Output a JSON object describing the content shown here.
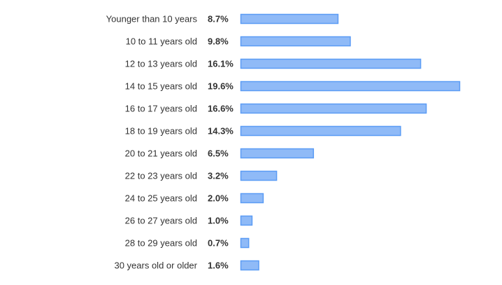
{
  "colors": {
    "bar_fill": "#8fbaf7",
    "bar_stroke": "#5b9cf5",
    "text": "#333333",
    "background": "#ffffff"
  },
  "chart_data": {
    "type": "bar",
    "orientation": "horizontal",
    "categories": [
      "Younger than 10 years",
      "10 to 11 years old",
      "12 to 13 years old",
      "14 to 15 years old",
      "16 to 17 years old",
      "18 to 19 years old",
      "20 to 21 years old",
      "22 to 23 years old",
      "24 to 25 years old",
      "26 to 27 years old",
      "28 to 29 years old",
      "30 years old or older"
    ],
    "values": [
      8.7,
      9.8,
      16.1,
      19.6,
      16.6,
      14.3,
      6.5,
      3.2,
      2.0,
      1.0,
      0.7,
      1.6
    ],
    "value_labels": [
      "8.7%",
      "9.8%",
      "16.1%",
      "19.6%",
      "16.6%",
      "14.3%",
      "6.5%",
      "3.2%",
      "2.0%",
      "1.0%",
      "0.7%",
      "1.6%"
    ],
    "title": "",
    "xlabel": "",
    "ylabel": "",
    "xlim": [
      0,
      19.6
    ],
    "grid": false,
    "legend": "none"
  }
}
